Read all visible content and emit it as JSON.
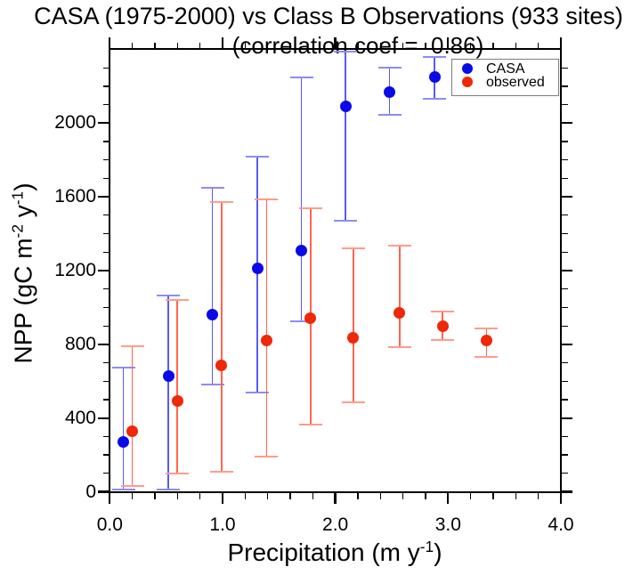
{
  "title": "CASA (1975-2000) vs Class B Observations (933 sites)",
  "subtitle": "(correlation coef =  0.86)",
  "legend": {
    "entries": [
      {
        "label": "CASA",
        "series": "casa"
      },
      {
        "label": "observed",
        "series": "observed"
      }
    ]
  },
  "chart_data": {
    "type": "scatter",
    "title": "CASA (1975-2000) vs Class B Observations (933 sites)",
    "subtitle": "(correlation coef = 0.86)",
    "correlation_coef": 0.86,
    "n_sites": 933,
    "xlabel": "Precipitation (m y-1)",
    "ylabel": "NPP (gC m-2 y-1)",
    "xlabel_parts": [
      {
        "t": "Precipitation (m y"
      },
      {
        "t": "-1",
        "sup": true
      },
      {
        "t": ")"
      }
    ],
    "ylabel_parts": [
      {
        "t": "NPP (gC m"
      },
      {
        "t": "-2",
        "sup": true
      },
      {
        "t": " y"
      },
      {
        "t": "-1",
        "sup": true
      },
      {
        "t": ")"
      }
    ],
    "xlim": [
      0,
      4
    ],
    "ylim": [
      0,
      2400
    ],
    "grid": false,
    "error_bars": true,
    "legend_position": "top-right",
    "axes": {
      "x": {
        "major_ticks": [
          {
            "v": 0,
            "label": "0.0"
          },
          {
            "v": 1,
            "label": "1.0"
          },
          {
            "v": 2,
            "label": "2.0"
          },
          {
            "v": 3,
            "label": "3.0"
          },
          {
            "v": 4,
            "label": "4.0"
          }
        ],
        "minor_step": 0.2
      },
      "y": {
        "major_ticks": [
          {
            "v": 0,
            "label": "0"
          },
          {
            "v": 400,
            "label": "400"
          },
          {
            "v": 800,
            "label": "800"
          },
          {
            "v": 1200,
            "label": "1200"
          },
          {
            "v": 1600,
            "label": "1600"
          },
          {
            "v": 2000,
            "label": "2000"
          }
        ],
        "minor_step": 100
      }
    },
    "series": [
      {
        "name": "CASA",
        "key": "casa",
        "colors": {
          "dot": "#0a0ae6",
          "err_line": "#5a5af0",
          "err_cap": "#8c8cf4"
        },
        "points": [
          {
            "x": 0.12,
            "y": 270,
            "err_lo": 10,
            "err_hi": 675
          },
          {
            "x": 0.52,
            "y": 630,
            "err_lo": 10,
            "err_hi": 1065
          },
          {
            "x": 0.91,
            "y": 960,
            "err_lo": 580,
            "err_hi": 1650
          },
          {
            "x": 1.31,
            "y": 1210,
            "err_lo": 540,
            "err_hi": 1820
          },
          {
            "x": 1.7,
            "y": 1310,
            "err_lo": 925,
            "err_hi": 2250
          },
          {
            "x": 2.09,
            "y": 2090,
            "err_lo": 1470,
            "err_hi": 2390
          },
          {
            "x": 2.48,
            "y": 2170,
            "err_lo": 2045,
            "err_hi": 2300
          },
          {
            "x": 2.88,
            "y": 2250,
            "err_lo": 2130,
            "err_hi": 2360
          }
        ]
      },
      {
        "name": "observed",
        "key": "observed",
        "colors": {
          "dot": "#ee2808",
          "err_line": "#ff6450",
          "err_cap": "#ff9c8c"
        },
        "points": [
          {
            "x": 0.2,
            "y": 330,
            "err_lo": 30,
            "err_hi": 790
          },
          {
            "x": 0.6,
            "y": 495,
            "err_lo": 100,
            "err_hi": 1040
          },
          {
            "x": 0.99,
            "y": 685,
            "err_lo": 110,
            "err_hi": 1570
          },
          {
            "x": 1.39,
            "y": 820,
            "err_lo": 190,
            "err_hi": 1585
          },
          {
            "x": 1.78,
            "y": 940,
            "err_lo": 365,
            "err_hi": 1540
          },
          {
            "x": 2.16,
            "y": 835,
            "err_lo": 485,
            "err_hi": 1320
          },
          {
            "x": 2.57,
            "y": 970,
            "err_lo": 785,
            "err_hi": 1335
          },
          {
            "x": 2.95,
            "y": 900,
            "err_lo": 825,
            "err_hi": 980
          },
          {
            "x": 3.34,
            "y": 820,
            "err_lo": 730,
            "err_hi": 885
          }
        ]
      }
    ]
  }
}
